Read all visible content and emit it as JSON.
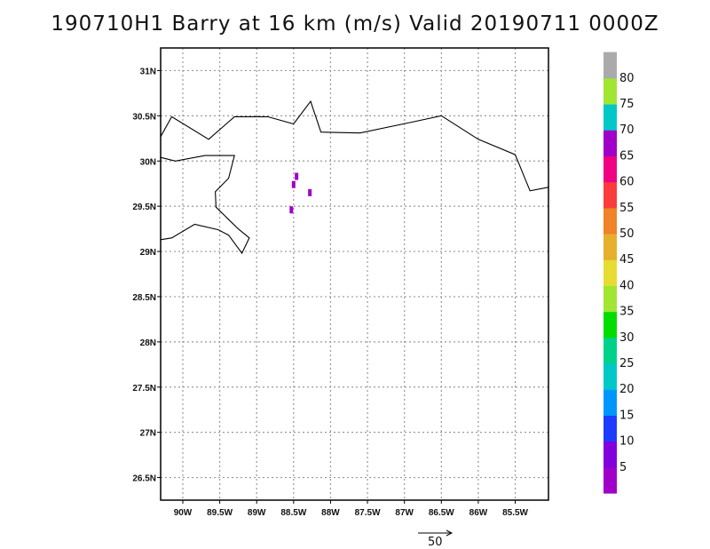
{
  "title": "190710H1 Barry at 16 km (m/s) Valid 20190711 0000Z",
  "map": {
    "lon_range": [
      -90.3,
      -85.05
    ],
    "lat_range": [
      26.25,
      31.25
    ],
    "x_ticks": [
      {
        "lon": -90.0,
        "label": "90W"
      },
      {
        "lon": -89.5,
        "label": "89.5W"
      },
      {
        "lon": -89.0,
        "label": "89W"
      },
      {
        "lon": -88.5,
        "label": "88.5W"
      },
      {
        "lon": -88.0,
        "label": "88W"
      },
      {
        "lon": -87.5,
        "label": "87.5W"
      },
      {
        "lon": -87.0,
        "label": "87W"
      },
      {
        "lon": -86.5,
        "label": "86.5W"
      },
      {
        "lon": -86.0,
        "label": "86W"
      },
      {
        "lon": -85.5,
        "label": "85.5W"
      }
    ],
    "y_ticks": [
      {
        "lat": 31.0,
        "label": "31N"
      },
      {
        "lat": 30.5,
        "label": "30.5N"
      },
      {
        "lat": 30.0,
        "label": "30N"
      },
      {
        "lat": 29.5,
        "label": "29.5N"
      },
      {
        "lat": 29.0,
        "label": "29N"
      },
      {
        "lat": 28.5,
        "label": "28.5N"
      },
      {
        "lat": 28.0,
        "label": "28N"
      },
      {
        "lat": 27.5,
        "label": "27.5N"
      },
      {
        "lat": 27.0,
        "label": "27N"
      },
      {
        "lat": 26.5,
        "label": "26.5N"
      }
    ],
    "grid": true,
    "coastlines": [
      [
        [
          -90.3,
          30.27
        ],
        [
          -90.15,
          30.49
        ],
        [
          -89.65,
          30.24
        ],
        [
          -89.3,
          30.49
        ],
        [
          -88.85,
          30.49
        ],
        [
          -88.5,
          30.41
        ],
        [
          -88.27,
          30.66
        ],
        [
          -88.13,
          30.32
        ],
        [
          -87.6,
          30.31
        ],
        [
          -86.9,
          30.43
        ],
        [
          -86.5,
          30.5
        ],
        [
          -86.0,
          30.24
        ],
        [
          -85.5,
          30.07
        ],
        [
          -85.3,
          29.67
        ],
        [
          -85.05,
          29.71
        ]
      ],
      [
        [
          -90.3,
          30.04
        ],
        [
          -90.1,
          30.0
        ],
        [
          -89.7,
          30.06
        ],
        [
          -89.3,
          30.06
        ],
        [
          -89.38,
          29.81
        ],
        [
          -89.56,
          29.66
        ],
        [
          -89.55,
          29.49
        ],
        [
          -89.25,
          29.25
        ],
        [
          -89.1,
          29.15
        ],
        [
          -89.2,
          28.98
        ],
        [
          -89.38,
          29.18
        ],
        [
          -89.52,
          29.24
        ],
        [
          -89.84,
          29.3
        ],
        [
          -90.15,
          29.15
        ],
        [
          -90.3,
          29.13
        ]
      ]
    ]
  },
  "overlay": {
    "wind_patches": [
      {
        "lon": -88.46,
        "lat": 29.83,
        "speed_ms": 4
      },
      {
        "lon": -88.5,
        "lat": 29.74,
        "speed_ms": 4
      },
      {
        "lon": -88.28,
        "lat": 29.65,
        "speed_ms": 4
      },
      {
        "lon": -88.53,
        "lat": 29.46,
        "speed_ms": 4
      }
    ]
  },
  "colorbar": {
    "labels": [
      "5",
      "10",
      "15",
      "20",
      "25",
      "30",
      "35",
      "40",
      "45",
      "50",
      "55",
      "60",
      "65",
      "70",
      "75",
      "80"
    ],
    "colors": [
      "#a000c8",
      "#8200dc",
      "#1e3cff",
      "#0096ff",
      "#00c8c8",
      "#00d28c",
      "#00dc00",
      "#a0e632",
      "#e6dc32",
      "#e6af2d",
      "#f08228",
      "#fa3c3c",
      "#f00082",
      "#a000c8",
      "#00c8c8",
      "#a0e632",
      "#aaaaaa"
    ]
  },
  "reference_vector": {
    "label": "50"
  }
}
